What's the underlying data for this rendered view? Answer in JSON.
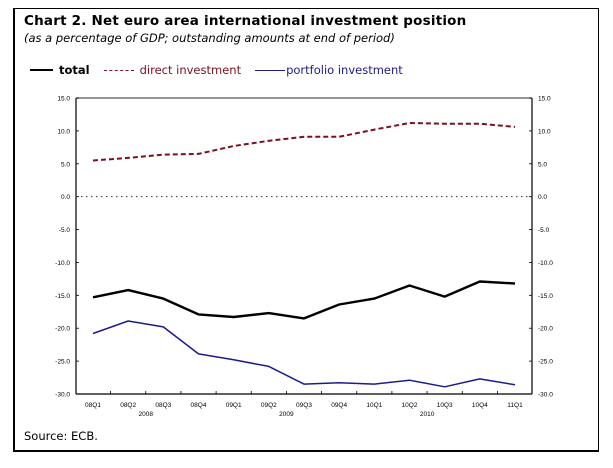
{
  "title": "Chart 2. Net euro area international investment position",
  "subtitle": "(as a percentage of GDP; outstanding amounts at end of period)",
  "source": "Source: ECB.",
  "colors": {
    "total": "#000000",
    "direct": "#7a1020",
    "portfolio": "#1b1b8e",
    "zero_line": "#333333"
  },
  "chart_data": {
    "type": "line",
    "title": "Chart 2. Net euro area international investment position",
    "subtitle": "(as a percentage of GDP; outstanding amounts at end of period)",
    "xlabel": "",
    "ylabel": "",
    "x": [
      "08Q1",
      "08Q2",
      "08Q3",
      "08Q4",
      "09Q1",
      "09Q2",
      "09Q3",
      "09Q4",
      "10Q1",
      "10Q2",
      "10Q3",
      "10Q4",
      "11Q1"
    ],
    "year_labels": [
      {
        "label": "2008",
        "center_index": 1.5
      },
      {
        "label": "2009",
        "center_index": 5.5
      },
      {
        "label": "2010",
        "center_index": 9.5
      }
    ],
    "ylim": [
      -30,
      15
    ],
    "yticks": [
      15,
      10,
      5,
      0,
      -5,
      -10,
      -15,
      -20,
      -25,
      -30
    ],
    "ytick_labels": [
      "15.0",
      "10.0",
      "5.0",
      "0.0",
      "-5.0",
      "-10.0",
      "-15.0",
      "-20.0",
      "-25.0",
      "-30.0"
    ],
    "secondary_y_axis": true,
    "grid": false,
    "zero_line": "dotted",
    "legend_position": "top-left",
    "series": [
      {
        "name": "total",
        "style": "solid-thick",
        "color": "#000000",
        "values": [
          -15.3,
          -14.2,
          -15.5,
          -17.9,
          -18.3,
          -17.7,
          -18.5,
          -16.4,
          -15.5,
          -13.5,
          -15.2,
          -12.9,
          -13.2
        ]
      },
      {
        "name": "direct investment",
        "style": "dashed",
        "color": "#7a1020",
        "values": [
          5.5,
          5.9,
          6.4,
          6.5,
          7.7,
          8.5,
          9.1,
          9.1,
          10.2,
          11.2,
          11.1,
          11.1,
          10.6
        ]
      },
      {
        "name": "portfolio investment",
        "style": "solid",
        "color": "#1b1b8e",
        "values": [
          -20.8,
          -18.9,
          -19.8,
          -23.9,
          -24.8,
          -25.8,
          -28.5,
          -28.3,
          -28.5,
          -27.9,
          -28.9,
          -27.7,
          -28.6
        ]
      }
    ]
  }
}
